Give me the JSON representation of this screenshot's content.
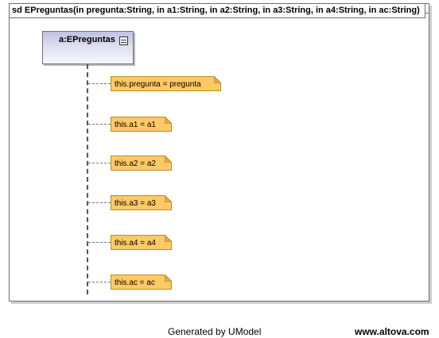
{
  "frame": {
    "title": "sd EPreguntas(in pregunta:String, in a1:String, in a2:String, in a3:String, in a4:String, in ac:String)"
  },
  "lifeline": {
    "name": "a:EPreguntas",
    "icon": "class-icon"
  },
  "notes": [
    "this.pregunta = pregunta",
    "this.a1 = a1",
    "this.a2 = a2",
    "this.a3 = a3",
    "this.a4 = a4",
    "this.ac = ac"
  ],
  "footer": {
    "generated": "Generated by UModel",
    "site": "www.altova.com"
  },
  "colors": {
    "note_fill": "#ffc965",
    "note_border": "#c08b27",
    "lifeline_gradient_top": "#bfc1e2"
  }
}
